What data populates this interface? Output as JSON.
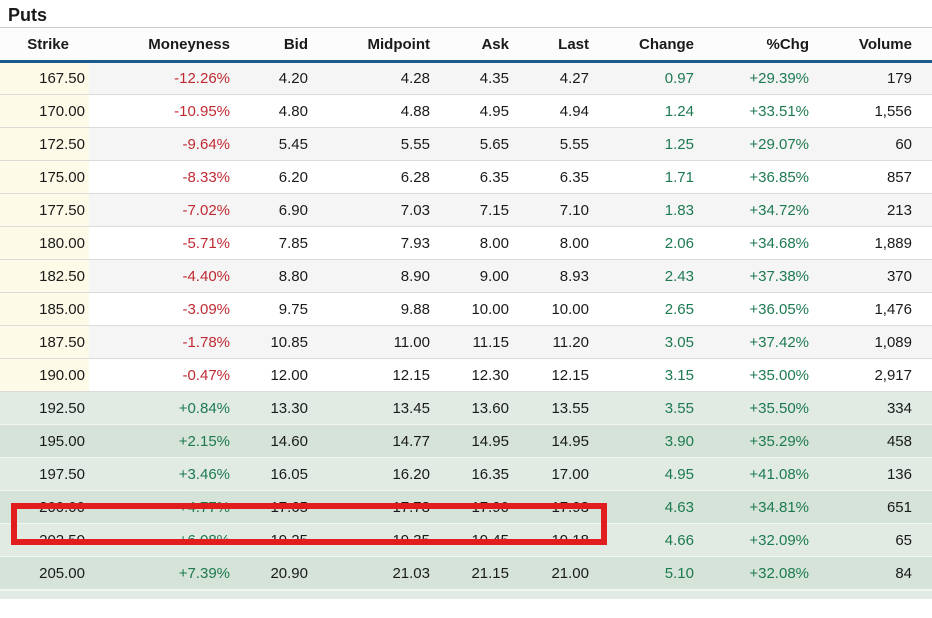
{
  "title": "Puts",
  "colors": {
    "text_primary": "#1a1a1a",
    "header_underline": "#1b5a8d",
    "moneyness_negative": "#c02a32",
    "positive_green": "#1d7a50",
    "strike_cell_bg": "#fdfae7",
    "row_alt_bg": "#f5f5f5",
    "itm_row_bg_light": "#e1ebe3",
    "itm_row_bg_dark": "#d5e3d9",
    "highlight_box": "#e11d1d"
  },
  "table": {
    "columns": [
      {
        "key": "strike",
        "label": "Strike"
      },
      {
        "key": "moneyness",
        "label": "Moneyness"
      },
      {
        "key": "bid",
        "label": "Bid"
      },
      {
        "key": "midpoint",
        "label": "Midpoint"
      },
      {
        "key": "ask",
        "label": "Ask"
      },
      {
        "key": "last",
        "label": "Last"
      },
      {
        "key": "change",
        "label": "Change"
      },
      {
        "key": "pct-chg",
        "label": "%Chg"
      },
      {
        "key": "volume",
        "label": "Volume"
      }
    ],
    "rows": [
      {
        "cells": [
          "167.50",
          "-12.26%",
          "4.20",
          "4.28",
          "4.35",
          "4.27",
          "0.97",
          "+29.39%",
          "179"
        ],
        "itm": false,
        "highlighted": false
      },
      {
        "cells": [
          "170.00",
          "-10.95%",
          "4.80",
          "4.88",
          "4.95",
          "4.94",
          "1.24",
          "+33.51%",
          "1,556"
        ],
        "itm": false,
        "highlighted": false
      },
      {
        "cells": [
          "172.50",
          "-9.64%",
          "5.45",
          "5.55",
          "5.65",
          "5.55",
          "1.25",
          "+29.07%",
          "60"
        ],
        "itm": false,
        "highlighted": false
      },
      {
        "cells": [
          "175.00",
          "-8.33%",
          "6.20",
          "6.28",
          "6.35",
          "6.35",
          "1.71",
          "+36.85%",
          "857"
        ],
        "itm": false,
        "highlighted": false
      },
      {
        "cells": [
          "177.50",
          "-7.02%",
          "6.90",
          "7.03",
          "7.15",
          "7.10",
          "1.83",
          "+34.72%",
          "213"
        ],
        "itm": false,
        "highlighted": false
      },
      {
        "cells": [
          "180.00",
          "-5.71%",
          "7.85",
          "7.93",
          "8.00",
          "8.00",
          "2.06",
          "+34.68%",
          "1,889"
        ],
        "itm": false,
        "highlighted": false
      },
      {
        "cells": [
          "182.50",
          "-4.40%",
          "8.80",
          "8.90",
          "9.00",
          "8.93",
          "2.43",
          "+37.38%",
          "370"
        ],
        "itm": false,
        "highlighted": false
      },
      {
        "cells": [
          "185.00",
          "-3.09%",
          "9.75",
          "9.88",
          "10.00",
          "10.00",
          "2.65",
          "+36.05%",
          "1,476"
        ],
        "itm": false,
        "highlighted": false
      },
      {
        "cells": [
          "187.50",
          "-1.78%",
          "10.85",
          "11.00",
          "11.15",
          "11.20",
          "3.05",
          "+37.42%",
          "1,089"
        ],
        "itm": false,
        "highlighted": false
      },
      {
        "cells": [
          "190.00",
          "-0.47%",
          "12.00",
          "12.15",
          "12.30",
          "12.15",
          "3.15",
          "+35.00%",
          "2,917"
        ],
        "itm": false,
        "highlighted": false
      },
      {
        "cells": [
          "192.50",
          "+0.84%",
          "13.30",
          "13.45",
          "13.60",
          "13.55",
          "3.55",
          "+35.50%",
          "334"
        ],
        "itm": true,
        "highlighted": false
      },
      {
        "cells": [
          "195.00",
          "+2.15%",
          "14.60",
          "14.77",
          "14.95",
          "14.95",
          "3.90",
          "+35.29%",
          "458"
        ],
        "itm": true,
        "highlighted": false
      },
      {
        "cells": [
          "197.50",
          "+3.46%",
          "16.05",
          "16.20",
          "16.35",
          "17.00",
          "4.95",
          "+41.08%",
          "136"
        ],
        "itm": true,
        "highlighted": false
      },
      {
        "cells": [
          "200.00",
          "+4.77%",
          "17.65",
          "17.78",
          "17.90",
          "17.93",
          "4.63",
          "+34.81%",
          "651"
        ],
        "itm": true,
        "highlighted": true
      },
      {
        "cells": [
          "202.50",
          "+6.08%",
          "19.25",
          "19.35",
          "19.45",
          "19.18",
          "4.66",
          "+32.09%",
          "65"
        ],
        "itm": true,
        "highlighted": false
      },
      {
        "cells": [
          "205.00",
          "+7.39%",
          "20.90",
          "21.03",
          "21.15",
          "21.00",
          "5.10",
          "+32.08%",
          "84"
        ],
        "itm": true,
        "highlighted": false
      }
    ]
  },
  "highlight": {
    "type": "red-annotation-box",
    "row_strike": "200.00"
  }
}
